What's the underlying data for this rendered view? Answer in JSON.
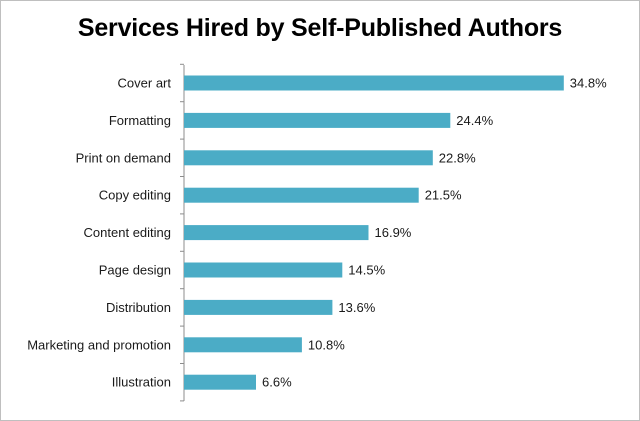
{
  "chart_data": {
    "type": "bar",
    "orientation": "horizontal",
    "title": "Services Hired by Self-Published Authors",
    "categories": [
      "Cover art",
      "Formatting",
      "Print on demand",
      "Copy editing",
      "Content editing",
      "Page design",
      "Distribution",
      "Marketing and promotion",
      "Illustration"
    ],
    "values": [
      34.8,
      24.4,
      22.8,
      21.5,
      16.9,
      14.5,
      13.6,
      10.8,
      6.6
    ],
    "value_labels": [
      "34.8%",
      "24.4%",
      "22.8%",
      "21.5%",
      "16.9%",
      "14.5%",
      "13.6%",
      "10.8%",
      "6.6%"
    ],
    "unit": "%",
    "xlabel": "",
    "ylabel": "",
    "xlim": [
      0,
      35
    ],
    "grid": false,
    "legend": "none",
    "bar_color": "#4bacc6"
  }
}
